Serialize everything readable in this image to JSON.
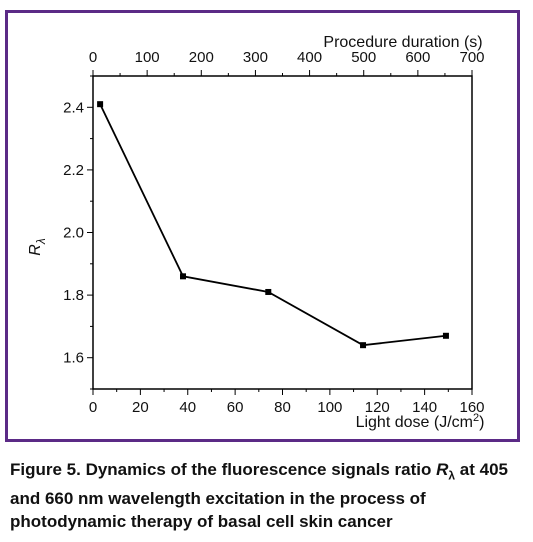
{
  "chart_data": {
    "type": "line",
    "title": "",
    "xlabel": "Light dose (J/cm²)",
    "ylabel": "Rλ",
    "x2label": "Procedure duration (s)",
    "xlim": [
      0,
      160
    ],
    "ylim": [
      1.5,
      2.5
    ],
    "x_ticks": [
      0,
      20,
      40,
      60,
      80,
      100,
      120,
      140,
      160
    ],
    "y_ticks": [
      1.6,
      1.8,
      2.0,
      2.2,
      2.4
    ],
    "x2lim": [
      0,
      700
    ],
    "x2_ticks": [
      0,
      100,
      200,
      300,
      400,
      500,
      600,
      700
    ],
    "series": [
      {
        "x": [
          3,
          38,
          74,
          114,
          149
        ],
        "y": [
          2.41,
          1.86,
          1.81,
          1.64,
          1.67
        ]
      }
    ],
    "grid": false
  },
  "caption": {
    "text": "Figure 5. Dynamics of the fluorescence signals ratio ",
    "symbol": "R",
    "subscript": "λ",
    "rest": " at 405 and 660 nm wavelength excitation in the process of photodynamic therapy of basal cell skin cancer"
  },
  "colors": {
    "frame": "#5b2a86",
    "line": "#000000"
  }
}
